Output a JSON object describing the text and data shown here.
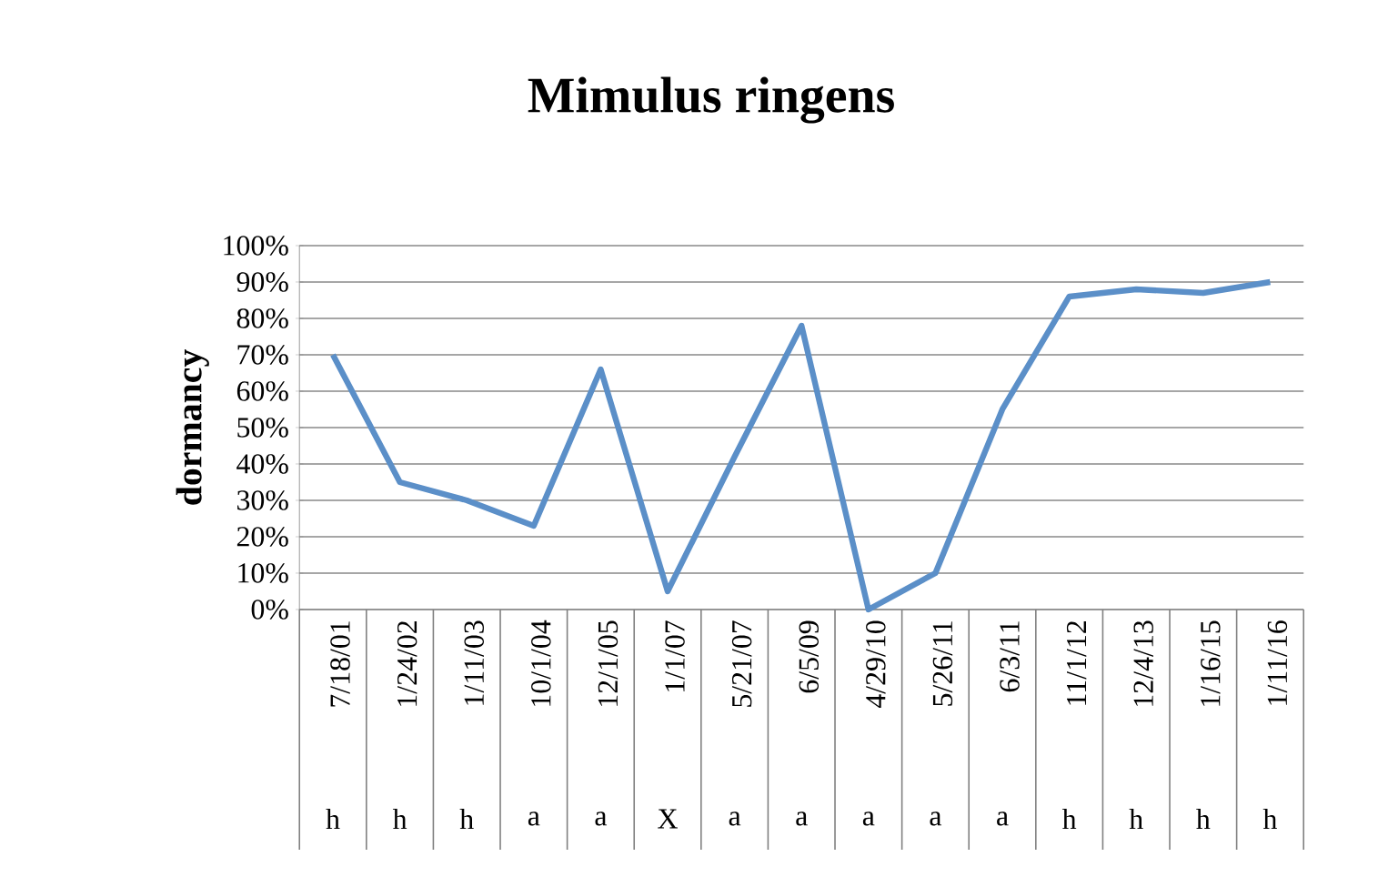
{
  "chart_data": {
    "type": "line",
    "title": "Mimulus ringens",
    "ylabel": "dormancy",
    "categories": [
      "7/18/01",
      "1/24/02",
      "1/11/03",
      "10/1/04",
      "12/1/05",
      "1/1/07",
      "5/21/07",
      "6/5/09",
      "4/29/10",
      "5/26/11",
      "6/3/11",
      "11/1/12",
      "12/4/13",
      "1/16/15",
      "1/11/16"
    ],
    "annotations": [
      "h",
      "h",
      "h",
      "a",
      "a",
      "X",
      "a",
      "a",
      "a",
      "a",
      "a",
      "h",
      "h",
      "h",
      "h"
    ],
    "series": [
      {
        "color": "#5b8fc8",
        "values": [
          70,
          35,
          30,
          23,
          66,
          5,
          42,
          78,
          0,
          10,
          55,
          86,
          88,
          87,
          90
        ]
      }
    ],
    "ylim": [
      0,
      100
    ],
    "yticks": [
      {
        "value": 0,
        "label": "0%"
      },
      {
        "value": 10,
        "label": "10%"
      },
      {
        "value": 20,
        "label": "20%"
      },
      {
        "value": 30,
        "label": "30%"
      },
      {
        "value": 40,
        "label": "40%"
      },
      {
        "value": 50,
        "label": "50%"
      },
      {
        "value": 60,
        "label": "60%"
      },
      {
        "value": 70,
        "label": "70%"
      },
      {
        "value": 80,
        "label": "80%"
      },
      {
        "value": 90,
        "label": "90%"
      },
      {
        "value": 100,
        "label": "100%"
      }
    ],
    "grid": "y",
    "marker": "none",
    "line_style": "solid"
  }
}
